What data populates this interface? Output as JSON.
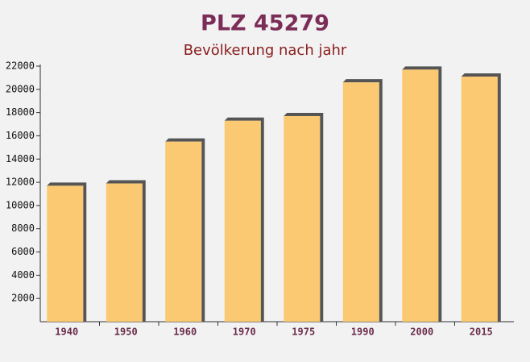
{
  "chart_data": {
    "type": "bar",
    "title": "PLZ 45279",
    "subtitle": "Bevölkerung nach jahr",
    "categories": [
      "1940",
      "1950",
      "1960",
      "1970",
      "1975",
      "1990",
      "2000",
      "2015"
    ],
    "values": [
      11700,
      11900,
      15500,
      17300,
      17700,
      20600,
      21700,
      21100
    ],
    "color": "#fbc463",
    "ylim": [
      0,
      22000
    ],
    "yticks": [
      2000,
      4000,
      6000,
      8000,
      10000,
      12000,
      14000,
      16000,
      18000,
      20000,
      22000
    ],
    "grid": false
  }
}
